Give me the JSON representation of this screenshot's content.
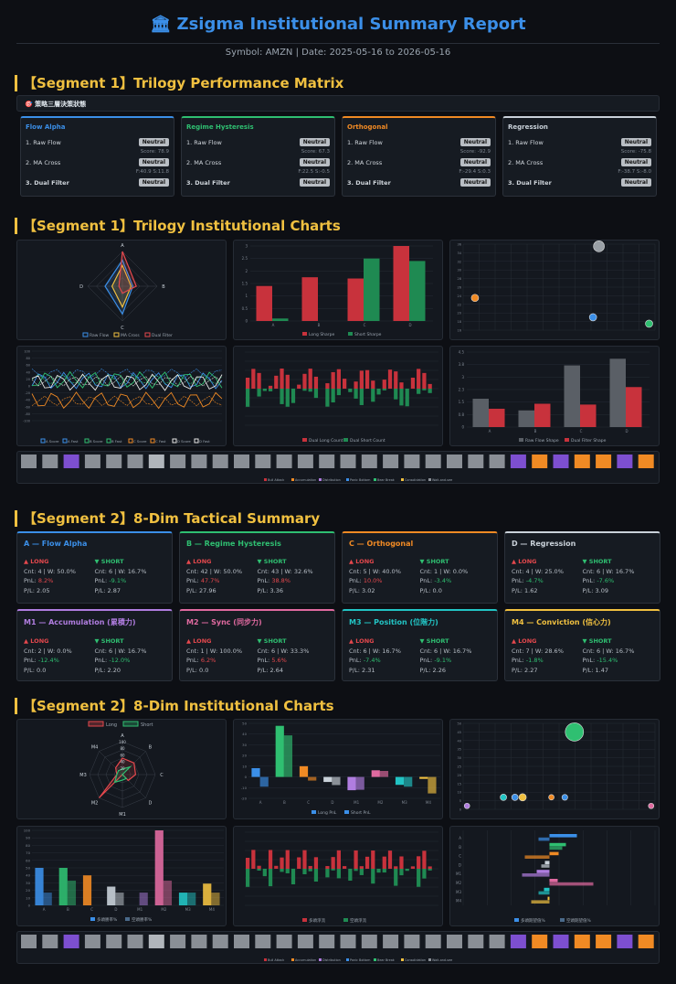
{
  "header": {
    "title": "Zsigma Institutional Summary Report",
    "icon": "bank-icon",
    "subtitle": "Symbol: AMZN | Date: 2025-05-16 to 2026-05-16"
  },
  "sections": {
    "s1": "【Segment 1】Trilogy Performance Matrix",
    "s2": "【Segment 1】Trilogy Institutional Charts",
    "s3": "【Segment 2】8-Dim Tactical Summary",
    "s4": "【Segment 2】8-Dim Institutional Charts"
  },
  "banner": "🎯 策略三層決策狀態",
  "trilogy": [
    {
      "name": "Flow Alpha",
      "color": "#3b8fe8",
      "r1": "1. Raw Flow",
      "b1": "Neutral",
      "s1": "Score: 78.9",
      "r2": "2. MA Cross",
      "b2": "Neutral",
      "s2": "F:40.9 S:11.8",
      "r3": "3. Dual Filter",
      "b3": "Neutral"
    },
    {
      "name": "Regime Hysteresis",
      "color": "#2fbf71",
      "r1": "1. Raw Flow",
      "b1": "Neutral",
      "s1": "Score: 67.3",
      "r2": "2. MA Cross",
      "b2": "Neutral",
      "s2": "F:22.5 S:-0.5",
      "r3": "3. Dual Filter",
      "b3": "Neutral"
    },
    {
      "name": "Orthogonal",
      "color": "#f08a24",
      "r1": "1. Raw Flow",
      "b1": "Neutral",
      "s1": "Score: -92.9",
      "r2": "2. MA Cross",
      "b2": "Neutral",
      "s2": "F:-29.4 S:0.3",
      "r3": "3. Dual Filter",
      "b3": "Neutral"
    },
    {
      "name": "Regression",
      "color": "#c9d1d9",
      "r1": "1. Raw Flow",
      "b1": "Neutral",
      "s1": "Score: -75.8",
      "r2": "2. MA Cross",
      "b2": "Neutral",
      "s2": "F:-38.7 S:-8.0",
      "r3": "3. Dual Filter",
      "b3": "Neutral"
    }
  ],
  "dims": [
    {
      "name": "A — Flow Alpha",
      "color": "#3b8fe8",
      "long": "▲ LONG",
      "short": "▼ SHORT",
      "l1": "Cnt: 4 | W: 50.0%",
      "l2v": "8.2%",
      "l3": "P/L: 2.05",
      "s1": "Cnt: 6 | W: 16.7%",
      "s2v": "-9.1%",
      "s3": "P/L: 2.87"
    },
    {
      "name": "B — Regime Hysteresis",
      "color": "#2fbf71",
      "long": "▲ LONG",
      "short": "▼ SHORT",
      "l1": "Cnt: 42 | W: 50.0%",
      "l2v": "47.7%",
      "l3": "P/L: 27.96",
      "s1": "Cnt: 43 | W: 32.6%",
      "s2v": "38.8%",
      "s3": "P/L: 3.36"
    },
    {
      "name": "C — Orthogonal",
      "color": "#f08a24",
      "long": "▲ LONG",
      "short": "▼ SHORT",
      "l1": "Cnt: 5 | W: 40.0%",
      "l2v": "10.0%",
      "l3": "P/L: 3.02",
      "s1": "Cnt: 1 | W: 0.0%",
      "s2v": "-3.4%",
      "s3": "P/L: 0.0"
    },
    {
      "name": "D — Regression",
      "color": "#c9d1d9",
      "long": "▲ LONG",
      "short": "▼ SHORT",
      "l1": "Cnt: 4 | W: 25.0%",
      "l2v": "-4.7%",
      "l3": "P/L: 1.62",
      "s1": "Cnt: 6 | W: 16.7%",
      "s2v": "-7.6%",
      "s3": "P/L: 3.09"
    },
    {
      "name": "M1 — Accumulation (累積力)",
      "color": "#b07de0",
      "long": "▲ LONG",
      "short": "▼ SHORT",
      "l1": "Cnt: 2 | W: 0.0%",
      "l2v": "-12.4%",
      "l3": "P/L: 0.0",
      "s1": "Cnt: 6 | W: 16.7%",
      "s2v": "-12.0%",
      "s3": "P/L: 2.20"
    },
    {
      "name": "M2 — Sync (同步力)",
      "color": "#e06aa0",
      "long": "▲ LONG",
      "short": "▼ SHORT",
      "l1": "Cnt: 1 | W: 100.0%",
      "l2v": "6.2%",
      "l3": "P/L: 0.0",
      "s1": "Cnt: 6 | W: 33.3%",
      "s2v": "5.6%",
      "s3": "P/L: 2.64"
    },
    {
      "name": "M3 — Position (位階力)",
      "color": "#22c4c4",
      "long": "▲ LONG",
      "short": "▼ SHORT",
      "l1": "Cnt: 6 | W: 16.7%",
      "l2v": "-7.4%",
      "l3": "P/L: 2.31",
      "s1": "Cnt: 6 | W: 16.7%",
      "s2v": "-9.1%",
      "s3": "P/L: 2.26"
    },
    {
      "name": "M4 — Conviction (信心力)",
      "color": "#f0c040",
      "long": "▲ LONG",
      "short": "▼ SHORT",
      "l1": "Cnt: 7 | W: 28.6%",
      "l2v": "-1.8%",
      "l3": "P/L: 2.27",
      "s1": "Cnt: 6 | W: 16.7%",
      "s2v": "-15.4%",
      "s3": "P/L: 1.47"
    }
  ],
  "labels": {
    "pnl": "PnL: "
  },
  "chart_data": [
    {
      "id": "c1-radar",
      "type": "radar",
      "axes": [
        "A",
        "B",
        "C",
        "D"
      ],
      "series": [
        {
          "name": "Raw Flow",
          "color": "#3b8fe8",
          "values": [
            75,
            30,
            80,
            50
          ]
        },
        {
          "name": "MA Cross",
          "color": "#f0c040",
          "values": [
            60,
            25,
            60,
            30
          ]
        },
        {
          "name": "Dual Filter",
          "color": "#e5484d",
          "values": [
            100,
            40,
            20,
            10
          ]
        }
      ]
    },
    {
      "id": "c1-bars",
      "type": "bar",
      "categories": [
        "A",
        "B",
        "C",
        "D"
      ],
      "ylim": [
        0,
        3
      ],
      "series": [
        {
          "name": "Long Sharpe",
          "color": "#c8323c",
          "values": [
            1.4,
            1.75,
            1.7,
            3.0
          ]
        },
        {
          "name": "Short Sharpe",
          "color": "#1f8a52",
          "values": [
            0.1,
            0,
            2.5,
            2.4
          ]
        }
      ]
    },
    {
      "id": "c1-scatter",
      "type": "scatter",
      "xlim": [
        5,
        11.5
      ],
      "ylim": [
        16,
        36
      ],
      "points": [
        {
          "x": 5.4,
          "y": 23.5,
          "r": 4,
          "color": "#f08a24"
        },
        {
          "x": 9.6,
          "y": 35.5,
          "r": 6,
          "color": "#9aa0a6"
        },
        {
          "x": 9.4,
          "y": 19,
          "r": 4,
          "color": "#3b8fe8"
        },
        {
          "x": 11.3,
          "y": 17.5,
          "r": 4,
          "color": "#2fbf71"
        }
      ]
    },
    {
      "id": "c1-lines",
      "type": "line",
      "ylim": [
        -100,
        100
      ],
      "legend": [
        "A Score",
        "A Fast",
        "B Score",
        "B Fast",
        "C Score",
        "C Fast",
        "D Score",
        "D Fast"
      ]
    },
    {
      "id": "c1-counts",
      "type": "bar",
      "legend": [
        "Dual Long Count",
        "Dual Short Count"
      ]
    },
    {
      "id": "c1-shape",
      "type": "bar",
      "categories": [
        "A",
        "B",
        "C",
        "D"
      ],
      "ylim": [
        0,
        4.5
      ],
      "series": [
        {
          "name": "Raw Flow Shape",
          "color": "#5a5f66",
          "values": [
            1.7,
            1.0,
            3.7,
            4.1
          ]
        },
        {
          "name": "Dual Filter Shape",
          "color": "#c8323c",
          "values": [
            1.1,
            1.4,
            1.35,
            2.4
          ]
        }
      ]
    },
    {
      "id": "c2-radar",
      "type": "radar",
      "axes": [
        "A",
        "B",
        "C",
        "D",
        "M1",
        "M2",
        "M3",
        "M4"
      ],
      "series": [
        {
          "name": "Long",
          "color": "#e5484d",
          "values": [
            50,
            50,
            40,
            25,
            0,
            100,
            17,
            29
          ]
        },
        {
          "name": "Short",
          "color": "#2fbf71",
          "values": [
            17,
            33,
            0,
            17,
            17,
            33,
            17,
            17
          ]
        }
      ]
    },
    {
      "id": "c2-pnl",
      "type": "bar",
      "categories": [
        "A",
        "B",
        "C",
        "D",
        "M1",
        "M2",
        "M3",
        "M4"
      ],
      "ylim": [
        -20,
        50
      ],
      "series": [
        {
          "name": "Long PnL",
          "color": "#3b8fe8"
        },
        {
          "name": "Short PnL",
          "color": "#3b8fe8"
        }
      ],
      "values_long": [
        8.2,
        47.7,
        10.0,
        -4.7,
        -12.4,
        6.2,
        -7.4,
        -1.8
      ],
      "values_short": [
        -9.1,
        38.8,
        -3.4,
        -7.6,
        -12.0,
        5.6,
        -9.1,
        -15.4
      ]
    },
    {
      "id": "c2-scatter",
      "type": "scatter",
      "xlim": [
        0,
        100
      ],
      "ylim": [
        0,
        50
      ]
    },
    {
      "id": "c2-win",
      "type": "bar",
      "categories": [
        "A",
        "B",
        "C",
        "D",
        "M1",
        "M2",
        "M3",
        "M4"
      ],
      "ylim": [
        0,
        100
      ],
      "series": [
        {
          "name": "多頭勝率%",
          "values": [
            50,
            50,
            40,
            25,
            0,
            100,
            17,
            29
          ]
        },
        {
          "name": "空頭勝率%",
          "values": [
            17,
            33,
            0,
            17,
            17,
            33,
            17,
            17
          ]
        }
      ]
    },
    {
      "id": "c2-flow",
      "type": "bar",
      "legend": [
        "多頭淨流",
        "空頭淨流"
      ]
    },
    {
      "id": "c2-hbar",
      "type": "barh",
      "categories": [
        "A",
        "B",
        "C",
        "D",
        "M1",
        "M2",
        "M3",
        "M4"
      ],
      "legend": [
        "多頭期望值%",
        "空頭期望值%"
      ]
    }
  ],
  "strip": {
    "legend": [
      "Bull Attack",
      "Accumulation",
      "Distribution",
      "Panic Bottom",
      "Bear Break",
      "Consolidation",
      "Wait-and-see"
    ]
  }
}
